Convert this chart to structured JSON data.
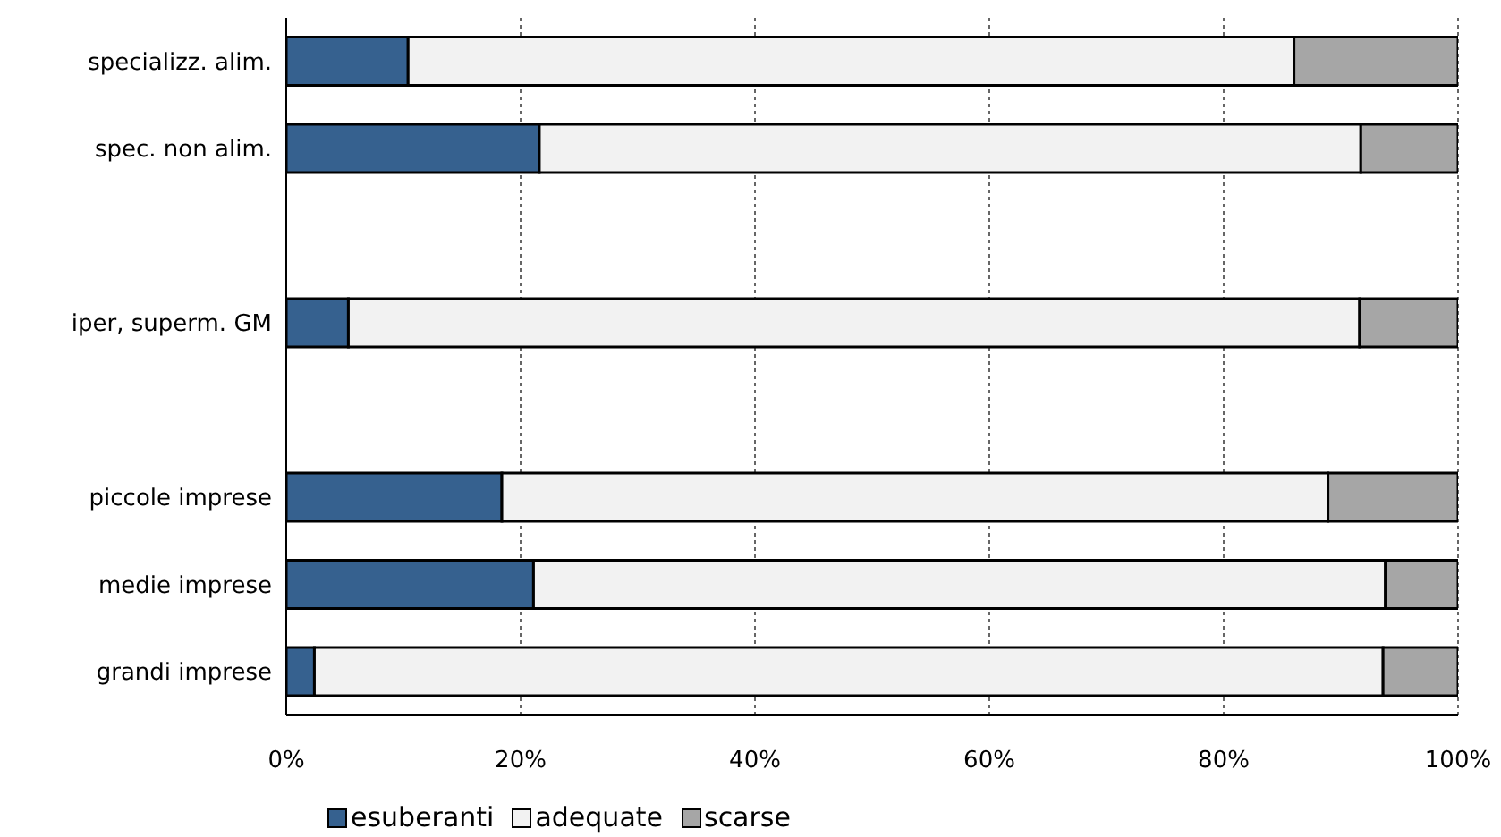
{
  "chart_data": {
    "type": "bar",
    "orientation": "horizontal",
    "stacked": true,
    "categories": [
      "specializz. alim.",
      "spec. non alim.",
      null,
      "iper, superm. GM",
      null,
      "piccole imprese",
      "medie imprese",
      "grandi imprese"
    ],
    "series": [
      {
        "name": "esuberanti",
        "color": "#36618f",
        "values": [
          10.4,
          21.6,
          null,
          5.3,
          null,
          18.4,
          21.1,
          2.4
        ]
      },
      {
        "name": "adequate",
        "color": "#f2f2f2",
        "values": [
          75.6,
          70.1,
          null,
          86.3,
          null,
          70.5,
          72.7,
          91.2
        ]
      },
      {
        "name": "scarse",
        "color": "#a6a6a6",
        "values": [
          14,
          8.3,
          null,
          8.4,
          null,
          11.1,
          6.2,
          6.4
        ]
      }
    ],
    "xlim": [
      0,
      100
    ],
    "xticks": [
      {
        "value": 0,
        "label": "0%"
      },
      {
        "value": 20,
        "label": "20%"
      },
      {
        "value": 40,
        "label": "40%"
      },
      {
        "value": 60,
        "label": "60%"
      },
      {
        "value": 80,
        "label": "80%"
      },
      {
        "value": 100,
        "label": "100%"
      }
    ],
    "grid": "x",
    "legend": "bottom"
  }
}
